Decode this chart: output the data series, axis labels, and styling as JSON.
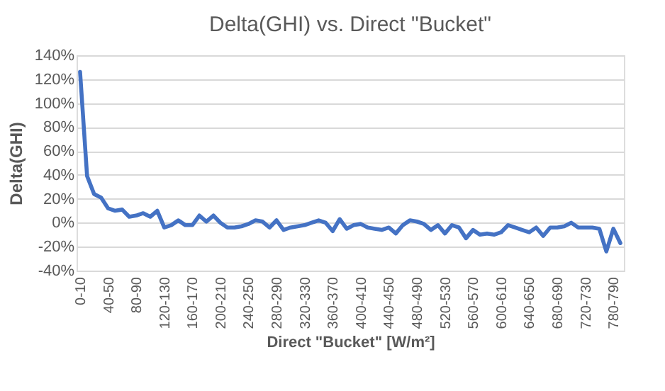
{
  "chart_data": {
    "type": "line",
    "title": "Delta(GHI) vs. Direct \"Bucket\"",
    "xlabel": "Direct \"Bucket\" [W/m²]",
    "ylabel": "Delta(GHI)",
    "categories": [
      "0-10",
      null,
      null,
      null,
      "40-50",
      null,
      null,
      null,
      "80-90",
      null,
      null,
      null,
      "120-130",
      null,
      null,
      null,
      "160-170",
      null,
      null,
      null,
      "200-210",
      null,
      null,
      null,
      "240-250",
      null,
      null,
      null,
      "280-290",
      null,
      null,
      null,
      "320-330",
      null,
      null,
      null,
      "360-370",
      null,
      null,
      null,
      "400-410",
      null,
      null,
      null,
      "440-450",
      null,
      null,
      null,
      "480-490",
      null,
      null,
      null,
      "520-530",
      null,
      null,
      null,
      "560-570",
      null,
      null,
      null,
      "600-610",
      null,
      null,
      null,
      "640-650",
      null,
      null,
      null,
      "680-690",
      null,
      null,
      null,
      "720-730",
      null,
      null,
      null,
      "780-790",
      null
    ],
    "series": [
      {
        "color": "#4472c4",
        "values": [
          126,
          39,
          24,
          21,
          12,
          10,
          11,
          5,
          6,
          8,
          5,
          10,
          -4,
          -2,
          2,
          -2,
          -2,
          6,
          1,
          6,
          0,
          -4,
          -4,
          -3,
          -1,
          2,
          1,
          -4,
          2,
          -6,
          -4,
          -3,
          -2,
          0,
          2,
          0,
          -7,
          3,
          -5,
          -2,
          -1,
          -4,
          -5,
          -6,
          -4,
          -9,
          -2,
          2,
          1,
          -1,
          -6,
          -2,
          -9,
          -2,
          -4,
          -13,
          -6,
          -10,
          -9,
          -10,
          -8,
          -2,
          -4,
          -6,
          -8,
          -4,
          -11,
          -4,
          -4,
          -3,
          0,
          -4,
          -4,
          -4,
          -5,
          -24,
          -5,
          -17
        ]
      }
    ],
    "ylim": [
      -40,
      140
    ],
    "yticks": [
      {
        "value": -40,
        "label": "-40%"
      },
      {
        "value": -20,
        "label": "-20%"
      },
      {
        "value": 0,
        "label": "0%"
      },
      {
        "value": 20,
        "label": "20%"
      },
      {
        "value": 40,
        "label": "40%"
      },
      {
        "value": 60,
        "label": "60%"
      },
      {
        "value": 80,
        "label": "80%"
      },
      {
        "value": 100,
        "label": "100%"
      },
      {
        "value": 120,
        "label": "120%"
      },
      {
        "value": 140,
        "label": "140%"
      }
    ],
    "grid": "y",
    "legend": false,
    "marker": "none",
    "line_style": "solid"
  }
}
